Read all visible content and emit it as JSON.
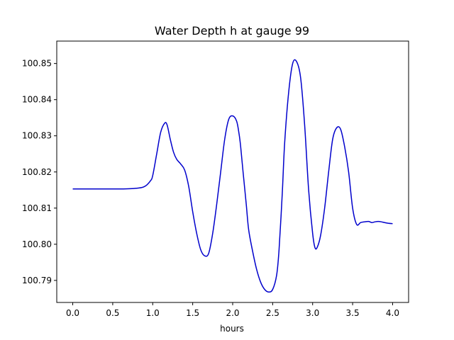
{
  "chart_data": {
    "type": "line",
    "title": "Water Depth h at gauge 99",
    "xlabel": "hours",
    "ylabel": "",
    "xlim": [
      -0.2,
      4.2
    ],
    "ylim": [
      100.7839,
      100.8562
    ],
    "x_ticks": [
      0.0,
      0.5,
      1.0,
      1.5,
      2.0,
      2.5,
      3.0,
      3.5,
      4.0
    ],
    "x_tick_labels": [
      "0.0",
      "0.5",
      "1.0",
      "1.5",
      "2.0",
      "2.5",
      "3.0",
      "3.5",
      "4.0"
    ],
    "y_ticks": [
      100.79,
      100.8,
      100.81,
      100.82,
      100.83,
      100.84,
      100.85
    ],
    "y_tick_labels": [
      "100.79",
      "100.80",
      "100.81",
      "100.82",
      "100.83",
      "100.84",
      "100.85"
    ],
    "grid": false,
    "legend": "none",
    "series": [
      {
        "color": "#0000cc",
        "x": [
          0.0,
          0.3,
          0.6,
          0.8,
          0.9,
          0.97,
          1.0,
          1.05,
          1.1,
          1.15,
          1.18,
          1.22,
          1.26,
          1.3,
          1.35,
          1.4,
          1.45,
          1.5,
          1.55,
          1.6,
          1.65,
          1.7,
          1.75,
          1.8,
          1.85,
          1.9,
          1.95,
          2.0,
          2.05,
          2.08,
          2.1,
          2.13,
          2.17,
          2.2,
          2.25,
          2.3,
          2.35,
          2.4,
          2.45,
          2.5,
          2.55,
          2.58,
          2.62,
          2.65,
          2.7,
          2.75,
          2.8,
          2.85,
          2.9,
          2.95,
          3.0,
          3.03,
          3.06,
          3.1,
          3.15,
          3.2,
          3.25,
          3.3,
          3.35,
          3.4,
          3.45,
          3.5,
          3.55,
          3.6,
          3.65,
          3.7,
          3.74,
          3.78,
          3.82,
          3.86,
          3.9,
          3.95,
          4.0
        ],
        "y": [
          100.8153,
          100.8153,
          100.8153,
          100.8155,
          100.816,
          100.8175,
          100.819,
          100.825,
          100.831,
          100.8335,
          100.833,
          100.829,
          100.8255,
          100.8235,
          100.8222,
          100.8205,
          100.816,
          100.809,
          100.803,
          100.7985,
          100.7968,
          100.7975,
          100.803,
          100.811,
          100.82,
          100.829,
          100.8345,
          100.8355,
          100.834,
          100.8305,
          100.827,
          100.82,
          100.811,
          100.804,
          100.798,
          100.793,
          100.7895,
          100.7875,
          100.7868,
          100.7875,
          100.7915,
          100.7985,
          100.814,
          100.828,
          100.842,
          100.85,
          100.8505,
          100.846,
          100.833,
          100.815,
          100.803,
          100.799,
          100.7993,
          100.8025,
          100.81,
          100.82,
          100.829,
          100.8322,
          100.8318,
          100.827,
          100.82,
          100.81,
          100.8055,
          100.806,
          100.8062,
          100.8063,
          100.806,
          100.8062,
          100.8063,
          100.8062,
          100.806,
          100.8058,
          100.8057
        ]
      }
    ]
  }
}
